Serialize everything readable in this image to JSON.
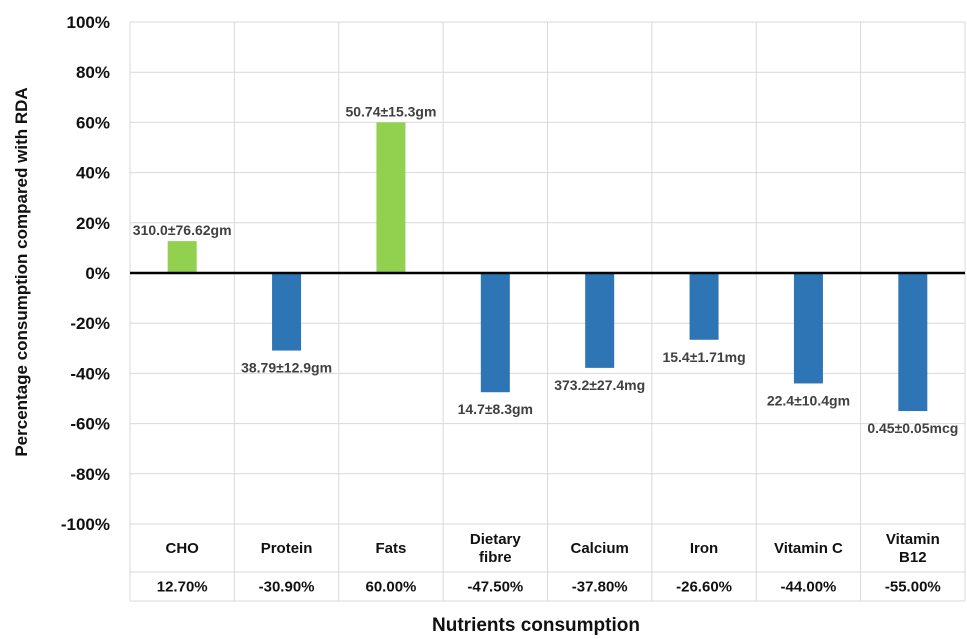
{
  "chart_data": {
    "type": "bar",
    "categories": [
      "CHO",
      "Protein",
      "Fats",
      "Dietary fibre",
      "Calcium",
      "Iron",
      "Vitamin C",
      "Vitamin B12"
    ],
    "category_lines": [
      [
        "CHO"
      ],
      [
        "Protein"
      ],
      [
        "Fats"
      ],
      [
        "Dietary",
        "fibre"
      ],
      [
        "Calcium"
      ],
      [
        "Iron"
      ],
      [
        "Vitamin C"
      ],
      [
        "Vitamin",
        "B12"
      ]
    ],
    "values": [
      12.7,
      -30.9,
      60.0,
      -47.5,
      -37.8,
      -26.6,
      -44.0,
      -55.0
    ],
    "table_values": [
      "12.70%",
      "-30.90%",
      "60.00%",
      "-47.50%",
      "-37.80%",
      "-26.60%",
      "-44.00%",
      "-55.00%"
    ],
    "data_labels": [
      "310.0±76.62gm",
      "38.79±12.9gm",
      "50.74±15.3gm",
      "14.7±8.3gm",
      "373.2±27.4mg",
      "15.4±1.71mg",
      "22.4±10.4gm",
      "0.45±0.05mcg"
    ],
    "ylim": [
      -100,
      100
    ],
    "yticks": [
      100,
      80,
      60,
      40,
      20,
      0,
      -20,
      -40,
      -60,
      -80,
      -100
    ],
    "ytick_labels": [
      "100%",
      "80%",
      "60%",
      "40%",
      "20%",
      "0%",
      "-20%",
      "-40%",
      "-60%",
      "-80%",
      "-100%"
    ],
    "xlabel": "Nutrients consumption",
    "ylabel": "Percentage consumption compared with RDA",
    "grid": true,
    "colors": {
      "positive": "#92d050",
      "negative": "#2e75b6",
      "grid": "#d9d9d9",
      "zero_line": "#000000"
    }
  }
}
